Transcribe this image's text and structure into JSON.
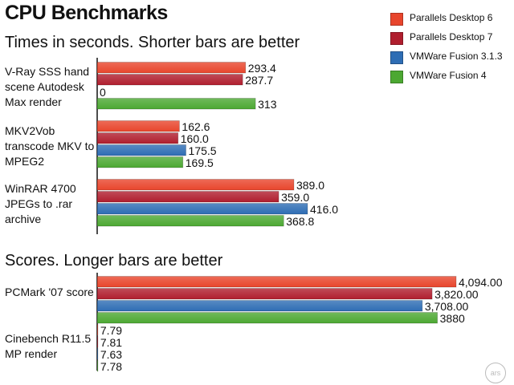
{
  "chart_data": [
    {
      "type": "bar",
      "title": "CPU Benchmarks",
      "subtitle": "Times in seconds. Shorter bars are better",
      "categories": [
        "V-Ray SSS hand scene Autodesk Max render",
        "MKV2Vob transcode MKV to MPEG2",
        "WinRAR 4700 JPEGs to .rar archive"
      ],
      "series": [
        {
          "name": "Parallels Desktop 6",
          "values": [
            293.4,
            162.6,
            389.0
          ],
          "labels": [
            "293.4",
            "162.6",
            "389.0"
          ]
        },
        {
          "name": "Parallels Desktop 7",
          "values": [
            287.7,
            160.0,
            359.0
          ],
          "labels": [
            "287.7",
            "160.0",
            "359.0"
          ]
        },
        {
          "name": "VMWare Fusion 3.1.3",
          "values": [
            0,
            175.5,
            416.0
          ],
          "labels": [
            "0",
            "175.5",
            "416.0"
          ]
        },
        {
          "name": "VMWare Fusion 4",
          "values": [
            313,
            169.5,
            368.8
          ],
          "labels": [
            "313",
            "169.5",
            "368.8"
          ]
        }
      ],
      "xlim": [
        0,
        416
      ],
      "orientation": "horizontal"
    },
    {
      "type": "bar",
      "subtitle": "Scores. Longer bars are better",
      "categories": [
        "PCMark '07 score",
        "Cinebench R11.5 MP render"
      ],
      "series": [
        {
          "name": "Parallels Desktop 6",
          "values": [
            4094.0,
            7.79
          ],
          "labels": [
            "4,094.00",
            "7.79"
          ]
        },
        {
          "name": "Parallels Desktop 7",
          "values": [
            3820.0,
            7.81
          ],
          "labels": [
            "3,820.00",
            "7.81"
          ]
        },
        {
          "name": "VMWare Fusion 3.1.3",
          "values": [
            3708.0,
            7.63
          ],
          "labels": [
            "3,708.00",
            "7.63"
          ]
        },
        {
          "name": "VMWare Fusion 4",
          "values": [
            3880,
            7.78
          ],
          "labels": [
            "3880",
            "7.78"
          ]
        }
      ],
      "xlim": [
        0,
        4094
      ],
      "orientation": "horizontal"
    }
  ],
  "legend": {
    "placement": "top-right",
    "items": [
      {
        "name": "Parallels Desktop 6",
        "color": "#e8452c"
      },
      {
        "name": "Parallels Desktop 7",
        "color": "#b01e2e"
      },
      {
        "name": "VMWare Fusion 3.1.3",
        "color": "#2e6db4"
      },
      {
        "name": "VMWare Fusion 4",
        "color": "#4ca832"
      }
    ]
  },
  "text": {
    "title": "CPU Benchmarks",
    "section1": "Times in seconds. Shorter bars are better",
    "section2": "Scores. Longer bars are better",
    "cat1_0": "V-Ray SSS hand scene Autodesk Max render",
    "cat1_1": "MKV2Vob transcode MKV to MPEG2",
    "cat1_2": "WinRAR 4700 JPEGs to .rar archive",
    "cat2_0": "PCMark '07 score",
    "cat2_1": "Cinebench R11.5 MP render",
    "logo": "ars"
  }
}
